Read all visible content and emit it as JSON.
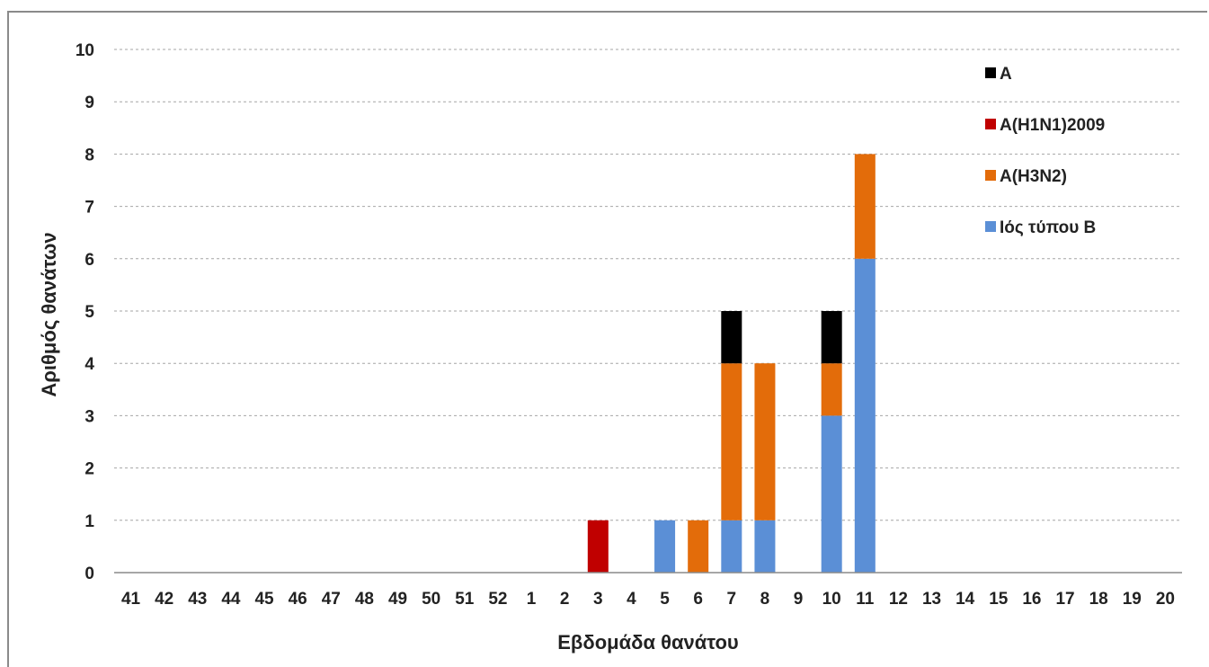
{
  "chart_data": {
    "type": "bar",
    "stacked": true,
    "title": "",
    "xlabel": "Εβδομάδα θανάτου",
    "ylabel": "Αριθμός θανάτων",
    "ylim": [
      0,
      10
    ],
    "yticks": [
      0,
      1,
      2,
      3,
      4,
      5,
      6,
      7,
      8,
      9,
      10
    ],
    "grid": true,
    "legend_position": "top-right",
    "categories": [
      "41",
      "42",
      "43",
      "44",
      "45",
      "46",
      "47",
      "48",
      "49",
      "50",
      "51",
      "52",
      "1",
      "2",
      "3",
      "4",
      "5",
      "6",
      "7",
      "8",
      "9",
      "10",
      "11",
      "12",
      "13",
      "14",
      "15",
      "16",
      "17",
      "18",
      "19",
      "20"
    ],
    "series": [
      {
        "name": "Ιός τύπου Β",
        "color": "#5b8fd6",
        "values": [
          0,
          0,
          0,
          0,
          0,
          0,
          0,
          0,
          0,
          0,
          0,
          0,
          0,
          0,
          0,
          0,
          1,
          0,
          1,
          1,
          0,
          3,
          6,
          0,
          0,
          0,
          0,
          0,
          0,
          0,
          0,
          0
        ]
      },
      {
        "name": "Α(Η3Ν2)",
        "color": "#e36c0a",
        "values": [
          0,
          0,
          0,
          0,
          0,
          0,
          0,
          0,
          0,
          0,
          0,
          0,
          0,
          0,
          0,
          0,
          0,
          1,
          3,
          3,
          0,
          1,
          2,
          0,
          0,
          0,
          0,
          0,
          0,
          0,
          0,
          0
        ]
      },
      {
        "name": "Α(Η1Ν1)2009",
        "color": "#c00000",
        "values": [
          0,
          0,
          0,
          0,
          0,
          0,
          0,
          0,
          0,
          0,
          0,
          0,
          0,
          0,
          1,
          0,
          0,
          0,
          0,
          0,
          0,
          0,
          0,
          0,
          0,
          0,
          0,
          0,
          0,
          0,
          0,
          0
        ]
      },
      {
        "name": "Α",
        "color": "#000000",
        "values": [
          0,
          0,
          0,
          0,
          0,
          0,
          0,
          0,
          0,
          0,
          0,
          0,
          0,
          0,
          0,
          0,
          0,
          0,
          1,
          0,
          0,
          1,
          0,
          0,
          0,
          0,
          0,
          0,
          0,
          0,
          0,
          0
        ]
      }
    ],
    "legend_order": [
      "Α",
      "Α(Η1Ν1)2009",
      "Α(Η3Ν2)",
      "Ιός τύπου Β"
    ]
  }
}
